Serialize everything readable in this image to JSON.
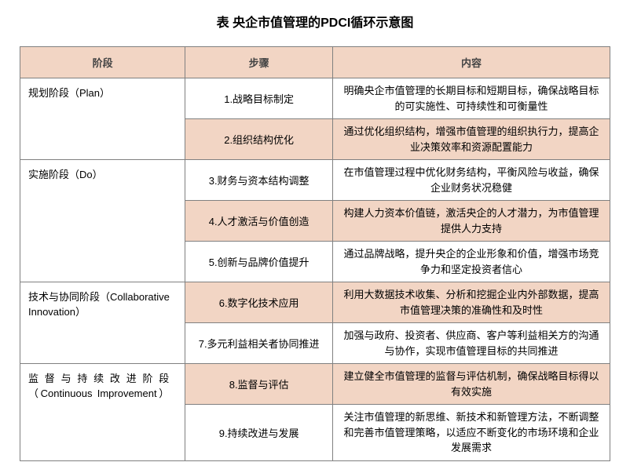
{
  "title": "表 央企市值管理的PDCI循环示意图",
  "headers": {
    "stage": "阶段",
    "step": "步骤",
    "content": "内容"
  },
  "stages": [
    {
      "name": "规划阶段（Plan）",
      "rows": [
        {
          "step": "1.战略目标制定",
          "content": "明确央企市值管理的长期目标和短期目标，确保战略目标的可实施性、可持续性和可衡量性",
          "alt": false
        },
        {
          "step": "2.组织结构优化",
          "content": "通过优化组织结构，增强市值管理的组织执行力，提高企业决策效率和资源配置能力",
          "alt": true
        }
      ]
    },
    {
      "name": "实施阶段（Do）",
      "rows": [
        {
          "step": "3.财务与资本结构调整",
          "content": "在市值管理过程中优化财务结构，平衡风险与收益，确保企业财务状况稳健",
          "alt": false
        },
        {
          "step": "4.人才激活与价值创造",
          "content": "构建人力资本价值链，激活央企的人才潜力，为市值管理提供人力支持",
          "alt": true
        },
        {
          "step": "5.创新与品牌价值提升",
          "content": "通过品牌战略，提升央企的企业形象和价值，增强市场竞争力和坚定投资者信心",
          "alt": false
        }
      ]
    },
    {
      "name": "技术与协同阶段（Collaborative Innovation）",
      "rows": [
        {
          "step": "6.数字化技术应用",
          "content": "利用大数据技术收集、分析和挖掘企业内外部数据，提高市值管理决策的准确性和及时性",
          "alt": true
        },
        {
          "step": "7.多元利益相关者协同推进",
          "content": "加强与政府、投资者、供应商、客户等利益相关方的沟通与协作，实现市值管理目标的共同推进",
          "alt": false
        }
      ]
    },
    {
      "name": "监督与持续改进阶段（Continuous Improvement）",
      "justify": true,
      "rows": [
        {
          "step": "8.监督与评估",
          "content": "建立健全市值管理的监督与评估机制，确保战略目标得以有效实施",
          "alt": true
        },
        {
          "step": "9.持续改进与发展",
          "content": "关注市值管理的新思维、新技术和新管理方法，不断调整和完善市值管理策略，以适应不断变化的市场环境和企业发展需求",
          "alt": false
        }
      ]
    }
  ],
  "colors": {
    "header_bg": "#f2d5c4",
    "alt_row_bg": "#f2d5c4",
    "border": "#808080",
    "text": "#000000",
    "background": "#ffffff"
  }
}
